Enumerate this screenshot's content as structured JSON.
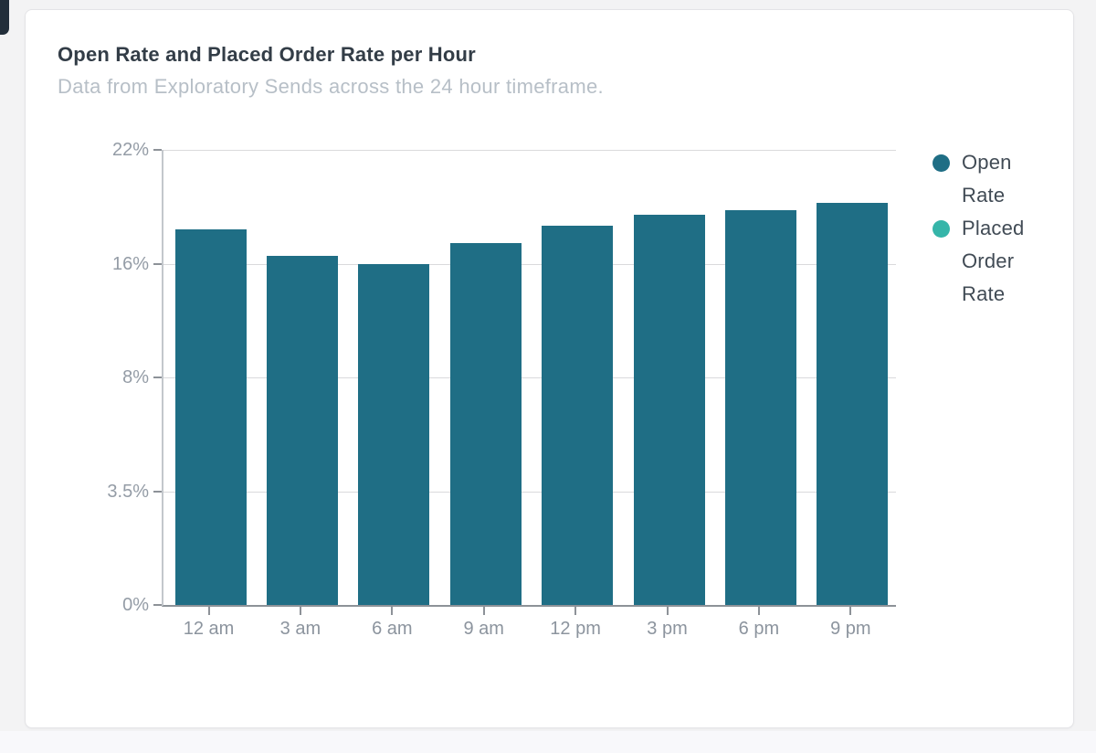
{
  "card": {
    "title": "Open Rate and Placed Order Rate per Hour",
    "subtitle": "Data from Exploratory Sends across the 24 hour timeframe."
  },
  "colors": {
    "open_rate": "#1f6e85",
    "placed_order_rate": "#35b5a9",
    "grid": "#dadadc",
    "axis_text": "#949ca6",
    "x_axis_text": "#8c949e"
  },
  "legend": {
    "items": [
      {
        "label": "Open Rate",
        "color": "#1f6e85"
      },
      {
        "label": "Placed Order Rate",
        "color": "#35b5a9"
      }
    ]
  },
  "chart_data": {
    "type": "bar",
    "title": "Open Rate and Placed Order Rate per Hour",
    "subtitle": "Data from Exploratory Sends across the 24 hour timeframe.",
    "categories": [
      "12 am",
      "3 am",
      "6 am",
      "9 am",
      "12 pm",
      "3 pm",
      "6 pm",
      "9 pm"
    ],
    "series": [
      {
        "name": "Open Rate",
        "color": "#1f6e85",
        "values": [
          17.8,
          16.4,
          16.0,
          17.1,
          18.0,
          18.6,
          18.8,
          19.2
        ]
      },
      {
        "name": "Placed Order Rate",
        "color": "#35b5a9",
        "values": [
          0,
          0,
          0,
          0,
          0,
          0,
          0,
          0
        ]
      }
    ],
    "y_tick_labels": [
      "0%",
      "3.5%",
      "8%",
      "16%",
      "22%"
    ],
    "y_tick_values": [
      0,
      3.5,
      8,
      16,
      22
    ],
    "y_axis_unit": "%",
    "ylim_note": "ticks evenly spaced (non-linear value scale)",
    "xlabel": "",
    "ylabel": "",
    "grid": "horizontal",
    "legend_position": "right"
  }
}
